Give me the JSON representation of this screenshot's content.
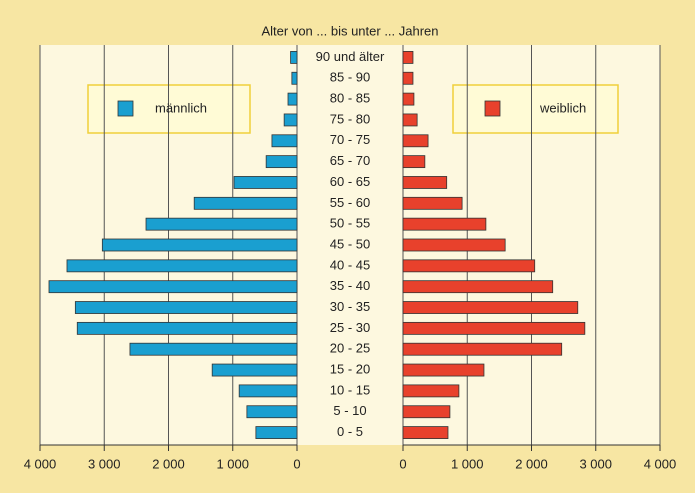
{
  "chart_data": {
    "type": "pyramid",
    "title": "Alter von ... bis unter ... Jahren",
    "categories": [
      "90 und älter",
      "85 - 90",
      "80 - 85",
      "75 - 80",
      "70 - 75",
      "65 - 70",
      "60 - 65",
      "55 - 60",
      "50 - 55",
      "45 - 50",
      "40 - 45",
      "35 - 40",
      "30 - 35",
      "25 - 30",
      "20 - 25",
      "15 - 20",
      "10 - 15",
      "5 - 10",
      "0 - 5"
    ],
    "series": [
      {
        "name": "männlich",
        "color": "#1a9fd0",
        "values": [
          100,
          80,
          140,
          200,
          390,
          480,
          980,
          1600,
          2350,
          3030,
          3580,
          3860,
          3450,
          3420,
          2600,
          1320,
          900,
          780,
          640
        ]
      },
      {
        "name": "weiblich",
        "color": "#e8412c",
        "values": [
          155,
          155,
          170,
          220,
          390,
          340,
          680,
          920,
          1290,
          1590,
          2050,
          2330,
          2720,
          2830,
          2470,
          1260,
          870,
          730,
          700
        ]
      }
    ],
    "xlim": [
      0,
      4000
    ],
    "xticks": [
      0,
      {
        "value": 1000,
        "label": "1 000"
      },
      {
        "value": 2000,
        "label": "2 000"
      },
      {
        "value": 3000,
        "label": "3 000"
      },
      {
        "value": 4000,
        "label": "4 000"
      }
    ],
    "grid": true
  }
}
